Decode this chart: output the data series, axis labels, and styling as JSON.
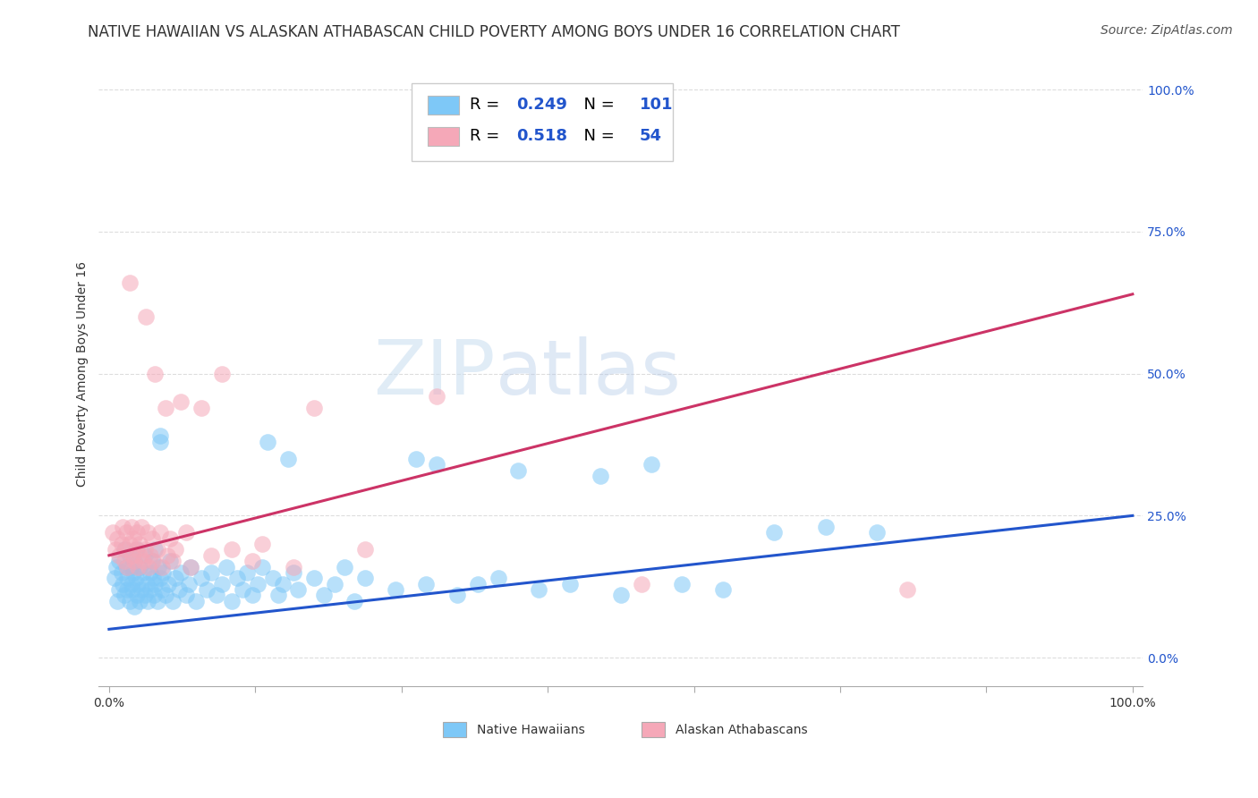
{
  "title": "NATIVE HAWAIIAN VS ALASKAN ATHABASCAN CHILD POVERTY AMONG BOYS UNDER 16 CORRELATION CHART",
  "source": "Source: ZipAtlas.com",
  "ylabel": "Child Poverty Among Boys Under 16",
  "xlim": [
    0.0,
    1.0
  ],
  "ylim": [
    -0.05,
    1.05
  ],
  "xtick_positions": [
    0.0,
    0.1429,
    0.2857,
    0.4286,
    0.5714,
    0.7143,
    0.8571,
    1.0
  ],
  "xtick_labels": [
    "0.0%",
    "",
    "",
    "",
    "",
    "",
    "",
    "100.0%"
  ],
  "ytick_positions": [
    0.0,
    0.25,
    0.5,
    0.75,
    1.0
  ],
  "ytick_labels": [
    "0.0%",
    "25.0%",
    "50.0%",
    "75.0%",
    "100.0%"
  ],
  "watermark_zip": "ZIP",
  "watermark_atlas": "atlas",
  "legend_items": [
    {
      "color": "#7ec8f7",
      "r": "0.249",
      "n": "101"
    },
    {
      "color": "#f5a8b8",
      "r": "0.518",
      "n": "54"
    }
  ],
  "blue_color": "#7ec8f7",
  "pink_color": "#f5a8b8",
  "blue_line_color": "#2255cc",
  "pink_line_color": "#cc3366",
  "blue_intercept": 0.05,
  "blue_slope": 0.2,
  "pink_intercept": 0.18,
  "pink_slope": 0.46,
  "blue_scatter": [
    [
      0.005,
      0.14
    ],
    [
      0.007,
      0.16
    ],
    [
      0.008,
      0.1
    ],
    [
      0.01,
      0.17
    ],
    [
      0.01,
      0.12
    ],
    [
      0.012,
      0.15
    ],
    [
      0.013,
      0.13
    ],
    [
      0.015,
      0.11
    ],
    [
      0.015,
      0.19
    ],
    [
      0.017,
      0.16
    ],
    [
      0.018,
      0.12
    ],
    [
      0.018,
      0.14
    ],
    [
      0.02,
      0.18
    ],
    [
      0.02,
      0.1
    ],
    [
      0.022,
      0.13
    ],
    [
      0.022,
      0.16
    ],
    [
      0.023,
      0.12
    ],
    [
      0.024,
      0.15
    ],
    [
      0.025,
      0.09
    ],
    [
      0.025,
      0.17
    ],
    [
      0.026,
      0.14
    ],
    [
      0.027,
      0.11
    ],
    [
      0.027,
      0.19
    ],
    [
      0.028,
      0.13
    ],
    [
      0.03,
      0.1
    ],
    [
      0.03,
      0.16
    ],
    [
      0.032,
      0.12
    ],
    [
      0.033,
      0.15
    ],
    [
      0.035,
      0.11
    ],
    [
      0.035,
      0.18
    ],
    [
      0.037,
      0.13
    ],
    [
      0.038,
      0.1
    ],
    [
      0.04,
      0.15
    ],
    [
      0.04,
      0.12
    ],
    [
      0.042,
      0.17
    ],
    [
      0.043,
      0.14
    ],
    [
      0.044,
      0.11
    ],
    [
      0.045,
      0.19
    ],
    [
      0.045,
      0.13
    ],
    [
      0.047,
      0.1
    ],
    [
      0.048,
      0.16
    ],
    [
      0.05,
      0.14
    ],
    [
      0.05,
      0.39
    ],
    [
      0.05,
      0.38
    ],
    [
      0.052,
      0.12
    ],
    [
      0.053,
      0.15
    ],
    [
      0.055,
      0.11
    ],
    [
      0.058,
      0.13
    ],
    [
      0.06,
      0.17
    ],
    [
      0.062,
      0.1
    ],
    [
      0.065,
      0.14
    ],
    [
      0.068,
      0.12
    ],
    [
      0.07,
      0.15
    ],
    [
      0.075,
      0.11
    ],
    [
      0.078,
      0.13
    ],
    [
      0.08,
      0.16
    ],
    [
      0.085,
      0.1
    ],
    [
      0.09,
      0.14
    ],
    [
      0.095,
      0.12
    ],
    [
      0.1,
      0.15
    ],
    [
      0.105,
      0.11
    ],
    [
      0.11,
      0.13
    ],
    [
      0.115,
      0.16
    ],
    [
      0.12,
      0.1
    ],
    [
      0.125,
      0.14
    ],
    [
      0.13,
      0.12
    ],
    [
      0.135,
      0.15
    ],
    [
      0.14,
      0.11
    ],
    [
      0.145,
      0.13
    ],
    [
      0.15,
      0.16
    ],
    [
      0.155,
      0.38
    ],
    [
      0.16,
      0.14
    ],
    [
      0.165,
      0.11
    ],
    [
      0.17,
      0.13
    ],
    [
      0.175,
      0.35
    ],
    [
      0.18,
      0.15
    ],
    [
      0.185,
      0.12
    ],
    [
      0.2,
      0.14
    ],
    [
      0.21,
      0.11
    ],
    [
      0.22,
      0.13
    ],
    [
      0.23,
      0.16
    ],
    [
      0.24,
      0.1
    ],
    [
      0.25,
      0.14
    ],
    [
      0.28,
      0.12
    ],
    [
      0.3,
      0.35
    ],
    [
      0.31,
      0.13
    ],
    [
      0.32,
      0.34
    ],
    [
      0.34,
      0.11
    ],
    [
      0.36,
      0.13
    ],
    [
      0.38,
      0.14
    ],
    [
      0.4,
      0.33
    ],
    [
      0.42,
      0.12
    ],
    [
      0.45,
      0.13
    ],
    [
      0.48,
      0.32
    ],
    [
      0.5,
      0.11
    ],
    [
      0.53,
      0.34
    ],
    [
      0.56,
      0.13
    ],
    [
      0.6,
      0.12
    ],
    [
      0.65,
      0.22
    ],
    [
      0.7,
      0.23
    ],
    [
      0.75,
      0.22
    ]
  ],
  "pink_scatter": [
    [
      0.004,
      0.22
    ],
    [
      0.006,
      0.19
    ],
    [
      0.008,
      0.21
    ],
    [
      0.01,
      0.18
    ],
    [
      0.012,
      0.2
    ],
    [
      0.013,
      0.23
    ],
    [
      0.015,
      0.17
    ],
    [
      0.016,
      0.19
    ],
    [
      0.017,
      0.22
    ],
    [
      0.018,
      0.16
    ],
    [
      0.02,
      0.2
    ],
    [
      0.02,
      0.66
    ],
    [
      0.022,
      0.23
    ],
    [
      0.023,
      0.18
    ],
    [
      0.024,
      0.21
    ],
    [
      0.025,
      0.17
    ],
    [
      0.026,
      0.19
    ],
    [
      0.027,
      0.22
    ],
    [
      0.028,
      0.16
    ],
    [
      0.03,
      0.2
    ],
    [
      0.03,
      0.18
    ],
    [
      0.032,
      0.23
    ],
    [
      0.033,
      0.17
    ],
    [
      0.035,
      0.19
    ],
    [
      0.036,
      0.6
    ],
    [
      0.038,
      0.22
    ],
    [
      0.039,
      0.16
    ],
    [
      0.04,
      0.18
    ],
    [
      0.042,
      0.21
    ],
    [
      0.043,
      0.17
    ],
    [
      0.045,
      0.5
    ],
    [
      0.047,
      0.19
    ],
    [
      0.05,
      0.22
    ],
    [
      0.052,
      0.16
    ],
    [
      0.055,
      0.44
    ],
    [
      0.057,
      0.18
    ],
    [
      0.06,
      0.21
    ],
    [
      0.062,
      0.17
    ],
    [
      0.065,
      0.19
    ],
    [
      0.07,
      0.45
    ],
    [
      0.075,
      0.22
    ],
    [
      0.08,
      0.16
    ],
    [
      0.09,
      0.44
    ],
    [
      0.1,
      0.18
    ],
    [
      0.11,
      0.5
    ],
    [
      0.12,
      0.19
    ],
    [
      0.14,
      0.17
    ],
    [
      0.15,
      0.2
    ],
    [
      0.18,
      0.16
    ],
    [
      0.2,
      0.44
    ],
    [
      0.25,
      0.19
    ],
    [
      0.32,
      0.46
    ],
    [
      0.52,
      0.13
    ],
    [
      0.78,
      0.12
    ]
  ],
  "title_fontsize": 12,
  "axis_label_fontsize": 10,
  "tick_fontsize": 10,
  "legend_fontsize": 13,
  "source_fontsize": 10,
  "tick_color": "#2255cc",
  "grid_color": "#dddddd"
}
